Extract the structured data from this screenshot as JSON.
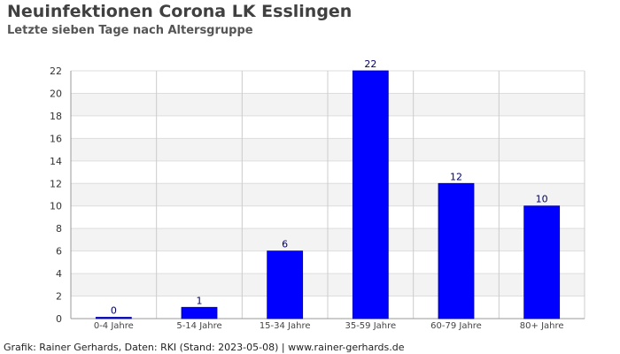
{
  "title": "Neuinfektionen Corona LK Esslingen",
  "subtitle": "Letzte sieben Tage nach Altersgruppe",
  "footer": "Grafik: Rainer Gerhards, Daten: RKI (Stand: 2023-05-08) | www.rainer-gerhards.de",
  "colors": {
    "bar": "#0000ff",
    "bar_border": "#0000aa",
    "label": "#000066"
  },
  "chart_data": {
    "type": "bar",
    "categories": [
      "0-4 Jahre",
      "5-14 Jahre",
      "15-34 Jahre",
      "35-59 Jahre",
      "60-79 Jahre",
      "80+ Jahre"
    ],
    "values": [
      0,
      1,
      6,
      22,
      12,
      10
    ],
    "ylim": [
      0,
      22
    ],
    "yticks": [
      0,
      2,
      4,
      6,
      8,
      10,
      12,
      14,
      16,
      18,
      20,
      22
    ],
    "grid": true,
    "data_labels": true
  }
}
